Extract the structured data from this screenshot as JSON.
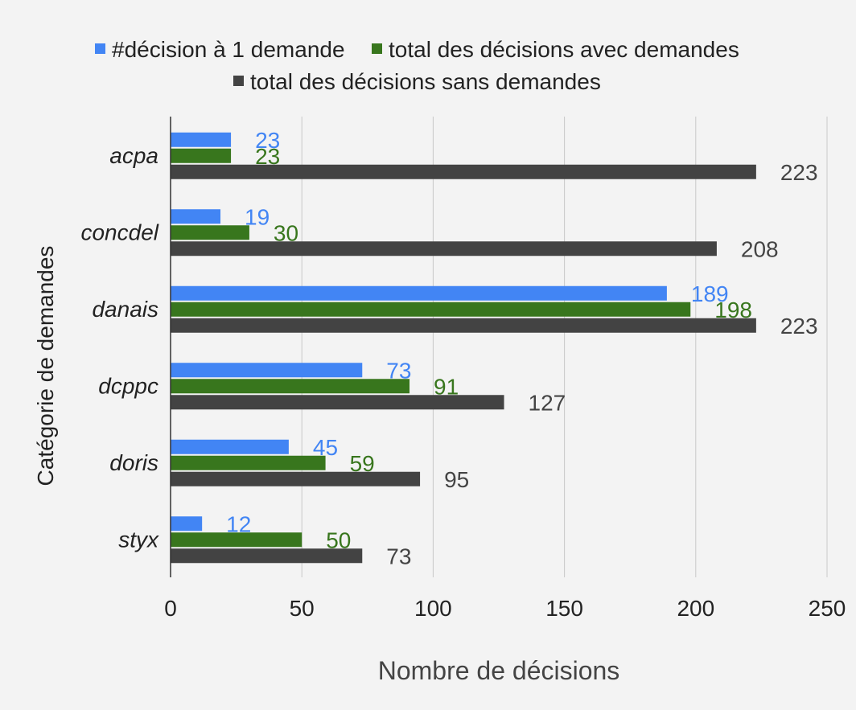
{
  "chart_data": {
    "type": "bar",
    "orientation": "horizontal",
    "title": "",
    "xlabel": "Nombre de décisions",
    "ylabel": "Catégorie de demandes",
    "categories": [
      "acpa",
      "concdel",
      "danais",
      "dcppc",
      "doris",
      "styx"
    ],
    "series": [
      {
        "name": "#décision à 1 demande",
        "color": "#4285f4",
        "values": [
          23,
          19,
          189,
          73,
          45,
          12
        ]
      },
      {
        "name": "total des décisions avec demandes",
        "color": "#38761d",
        "values": [
          23,
          30,
          198,
          91,
          59,
          50
        ]
      },
      {
        "name": "total des décisions sans demandes",
        "color": "#434343",
        "values": [
          223,
          208,
          223,
          127,
          95,
          73
        ]
      }
    ],
    "xlim": [
      0,
      250
    ],
    "xticks": [
      0,
      50,
      100,
      150,
      200,
      250
    ],
    "grid": true,
    "legend_position": "top",
    "data_labels": true
  }
}
